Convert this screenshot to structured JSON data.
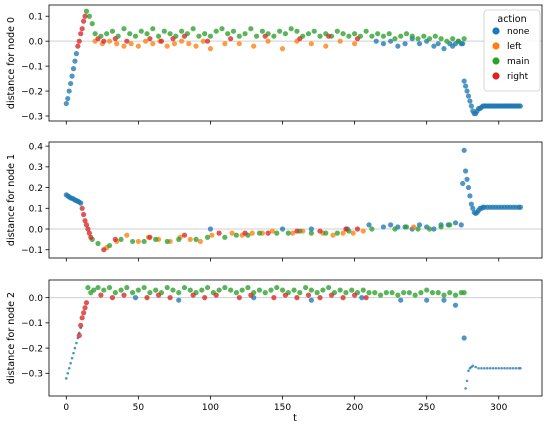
{
  "figure": {
    "legend_title": "action",
    "legend_items": [
      {
        "label": "none",
        "color": "#1f77b4"
      },
      {
        "label": "left",
        "color": "#ff7f0e"
      },
      {
        "label": "main",
        "color": "#2ca02c"
      },
      {
        "label": "right",
        "color": "#d62728"
      }
    ],
    "shared_xlabel": "t"
  },
  "chart_data": [
    {
      "type": "scatter",
      "ylabel": "distance for node 0",
      "xlim": [
        -12,
        330
      ],
      "ylim": [
        -0.32,
        0.145
      ],
      "xticks": [
        0,
        50,
        100,
        150,
        200,
        250,
        300
      ],
      "yticks": [
        0.1,
        0.0,
        -0.1,
        -0.2,
        -0.3
      ],
      "ytick_labels": [
        "0.1",
        "0.0",
        "−0.1",
        "−0.2",
        "−0.3"
      ],
      "show_xtick_labels": false,
      "legend": "top-right",
      "series": [
        {
          "name": "none",
          "color": "#1f77b4",
          "x": [
            0,
            1,
            2,
            3,
            4,
            5,
            6,
            7,
            215,
            220,
            225,
            230,
            235,
            240,
            245,
            250,
            255,
            258,
            262,
            266,
            268,
            270,
            272,
            274,
            275,
            276,
            277,
            278,
            279,
            280,
            281,
            282,
            283,
            284,
            285,
            286,
            287,
            288,
            289,
            290,
            291,
            292,
            293,
            294,
            295,
            296,
            297,
            298,
            299,
            300,
            301,
            302,
            303,
            304,
            305,
            306,
            307,
            308,
            309,
            310,
            311,
            312,
            313,
            314,
            315
          ],
          "y": [
            -0.25,
            -0.23,
            -0.2,
            -0.17,
            -0.14,
            -0.11,
            -0.08,
            -0.05,
            0.0,
            -0.01,
            0.0,
            -0.02,
            -0.01,
            0.01,
            -0.01,
            0.0,
            -0.02,
            -0.01,
            -0.03,
            -0.01,
            -0.02,
            -0.01,
            0.0,
            -0.01,
            -0.01,
            -0.16,
            -0.18,
            -0.2,
            -0.22,
            -0.24,
            -0.26,
            -0.28,
            -0.29,
            -0.29,
            -0.28,
            -0.27,
            -0.27,
            -0.265,
            -0.26,
            -0.26,
            -0.26,
            -0.26,
            -0.26,
            -0.26,
            -0.26,
            -0.26,
            -0.26,
            -0.26,
            -0.26,
            -0.26,
            -0.26,
            -0.26,
            -0.26,
            -0.26,
            -0.26,
            -0.26,
            -0.26,
            -0.26,
            -0.26,
            -0.26,
            -0.26,
            -0.26,
            -0.26,
            -0.26,
            -0.26
          ]
        },
        {
          "name": "left",
          "color": "#ff7f0e",
          "x": [
            20,
            25,
            30,
            35,
            40,
            45,
            50,
            55,
            60,
            65,
            70,
            75,
            80,
            85,
            90,
            95,
            100,
            110,
            120,
            130,
            140,
            150,
            160,
            170,
            180,
            190,
            200
          ],
          "y": [
            0.0,
            -0.01,
            0.0,
            -0.01,
            -0.02,
            -0.01,
            -0.02,
            0.0,
            -0.01,
            0.0,
            -0.02,
            -0.01,
            0.0,
            -0.01,
            -0.02,
            0.0,
            -0.03,
            -0.01,
            -0.01,
            -0.02,
            0.0,
            -0.03,
            0.0,
            -0.01,
            -0.02,
            0.0,
            -0.01
          ]
        },
        {
          "name": "main",
          "color": "#2ca02c",
          "x": [
            14,
            16,
            18,
            20,
            24,
            28,
            32,
            36,
            40,
            44,
            48,
            52,
            56,
            60,
            64,
            68,
            72,
            76,
            80,
            84,
            88,
            92,
            96,
            100,
            104,
            108,
            112,
            116,
            120,
            124,
            128,
            132,
            136,
            140,
            144,
            148,
            152,
            156,
            160,
            164,
            168,
            172,
            176,
            180,
            184,
            188,
            192,
            196,
            200,
            204,
            208,
            212,
            216,
            220,
            224,
            228,
            232,
            236,
            240,
            244,
            248,
            252,
            256,
            260,
            264,
            268,
            272,
            276
          ],
          "y": [
            0.12,
            0.1,
            0.07,
            0.03,
            0.02,
            0.03,
            0.04,
            0.02,
            0.05,
            0.03,
            0.02,
            0.04,
            0.03,
            0.05,
            0.02,
            0.04,
            0.03,
            0.02,
            0.04,
            0.03,
            0.05,
            0.02,
            0.03,
            0.02,
            0.04,
            0.05,
            0.03,
            0.04,
            0.02,
            0.03,
            0.05,
            0.02,
            0.04,
            0.03,
            0.02,
            0.04,
            0.03,
            0.05,
            0.04,
            0.02,
            0.03,
            0.04,
            0.02,
            0.03,
            0.02,
            0.04,
            0.03,
            0.02,
            0.03,
            0.02,
            0.04,
            0.02,
            0.03,
            0.02,
            0.03,
            0.01,
            0.02,
            0.03,
            0.02,
            0.01,
            0.02,
            0.01,
            0.02,
            0.01,
            0.0,
            0.01,
            0.0,
            0.01
          ]
        },
        {
          "name": "right",
          "color": "#d62728",
          "x": [
            8,
            9,
            10,
            11,
            12,
            13,
            22,
            26,
            34,
            42,
            58,
            66,
            74,
            82,
            98,
            114,
            138,
            162,
            182,
            202
          ],
          "y": [
            -0.02,
            0.0,
            0.03,
            0.05,
            0.08,
            0.1,
            0.01,
            0.0,
            0.01,
            0.0,
            0.01,
            0.0,
            0.01,
            0.02,
            0.0,
            0.01,
            0.02,
            0.01,
            0.02,
            0.01
          ]
        }
      ]
    },
    {
      "type": "scatter",
      "ylabel": "distance for node 1",
      "xlim": [
        -12,
        330
      ],
      "ylim": [
        -0.14,
        0.42
      ],
      "xticks": [
        0,
        50,
        100,
        150,
        200,
        250,
        300
      ],
      "yticks": [
        0.4,
        0.3,
        0.2,
        0.1,
        0.0,
        -0.1
      ],
      "ytick_labels": [
        "0.4",
        "0.3",
        "0.2",
        "0.1",
        "0.0",
        "−0.1"
      ],
      "show_xtick_labels": false,
      "series": [
        {
          "name": "none",
          "color": "#1f77b4",
          "x": [
            0,
            1,
            2,
            3,
            4,
            5,
            6,
            7,
            8,
            9,
            10,
            100,
            150,
            170,
            195,
            210,
            220,
            225,
            230,
            235,
            240,
            245,
            250,
            255,
            260,
            265,
            270,
            274,
            275,
            276,
            277,
            278,
            279,
            280,
            281,
            282,
            283,
            284,
            285,
            286,
            287,
            288,
            289,
            290,
            292,
            294,
            296,
            298,
            300,
            302,
            304,
            306,
            308,
            310,
            312,
            314,
            315
          ],
          "y": [
            0.165,
            0.16,
            0.155,
            0.15,
            0.148,
            0.145,
            0.14,
            0.137,
            0.134,
            0.13,
            0.125,
            0.0,
            0.0,
            0.0,
            0.0,
            0.02,
            0.01,
            0.02,
            0.01,
            0.01,
            0.0,
            0.02,
            0.01,
            0.0,
            0.02,
            0.02,
            0.03,
            0.02,
            0.22,
            0.38,
            0.28,
            0.24,
            0.2,
            0.16,
            0.12,
            0.1,
            0.08,
            0.075,
            0.08,
            0.09,
            0.1,
            0.1,
            0.105,
            0.105,
            0.105,
            0.105,
            0.105,
            0.105,
            0.105,
            0.105,
            0.105,
            0.105,
            0.105,
            0.105,
            0.105,
            0.105,
            0.105
          ]
        },
        {
          "name": "left",
          "color": "#ff7f0e",
          "x": [
            28,
            35,
            42,
            50,
            57,
            64,
            72,
            79,
            86,
            93,
            101,
            115,
            122,
            129,
            136,
            143,
            157,
            164,
            178,
            185,
            192,
            199,
            206,
            241
          ],
          "y": [
            -0.09,
            -0.06,
            -0.03,
            -0.06,
            -0.04,
            -0.05,
            -0.06,
            -0.04,
            -0.05,
            -0.06,
            -0.03,
            -0.02,
            -0.03,
            -0.02,
            -0.02,
            -0.01,
            -0.02,
            -0.01,
            -0.02,
            -0.03,
            -0.02,
            -0.02,
            -0.01,
            0.01
          ]
        },
        {
          "name": "main",
          "color": "#2ca02c",
          "x": [
            18,
            22,
            30,
            38,
            46,
            54,
            62,
            70,
            78,
            90,
            98,
            110,
            118,
            126,
            134,
            146,
            154,
            162,
            170,
            180,
            188,
            196,
            212,
            228,
            236,
            244,
            252,
            260,
            266
          ],
          "y": [
            -0.05,
            -0.07,
            -0.08,
            -0.05,
            -0.06,
            -0.06,
            -0.05,
            -0.06,
            -0.05,
            -0.05,
            -0.04,
            -0.04,
            -0.03,
            -0.03,
            -0.02,
            -0.02,
            -0.02,
            -0.01,
            -0.02,
            -0.02,
            -0.02,
            -0.01,
            0.0,
            0.0,
            0.01,
            0.0,
            0.0,
            0.01,
            0.02
          ]
        },
        {
          "name": "right",
          "color": "#d62728",
          "x": [
            11,
            12,
            13,
            14,
            15,
            16,
            17,
            26,
            34,
            58,
            82,
            106,
            124,
            140,
            160,
            176,
            194,
            202
          ],
          "y": [
            0.1,
            0.07,
            0.04,
            0.02,
            0.0,
            -0.02,
            -0.04,
            -0.1,
            -0.05,
            -0.04,
            -0.03,
            -0.02,
            -0.02,
            -0.02,
            -0.01,
            -0.01,
            0.0,
            0.0
          ]
        }
      ]
    },
    {
      "type": "scatter",
      "ylabel": "distance for node 2",
      "xlabel": "t",
      "xlim": [
        -12,
        330
      ],
      "ylim": [
        -0.39,
        0.07
      ],
      "xticks": [
        0,
        50,
        100,
        150,
        200,
        250,
        300
      ],
      "xtick_labels": [
        "0",
        "50",
        "100",
        "150",
        "200",
        "250",
        "300"
      ],
      "yticks": [
        0.0,
        -0.1,
        -0.2,
        -0.3
      ],
      "ytick_labels": [
        "0.0",
        "−0.1",
        "−0.2",
        "−0.3"
      ],
      "show_xtick_labels": true,
      "series": [
        {
          "name": "none",
          "color": "#1f77b4",
          "x": [
            0,
            1,
            2,
            3,
            4,
            5,
            6,
            7,
            8,
            9,
            10,
            48,
            78,
            130,
            170,
            205,
            232,
            250,
            262,
            270,
            276,
            277,
            278,
            279,
            280,
            281,
            282,
            284,
            286,
            288,
            290,
            292,
            294,
            296,
            298,
            300,
            302,
            304,
            306,
            308,
            310,
            312,
            314,
            315
          ],
          "y": [
            -0.32,
            -0.3,
            -0.28,
            -0.26,
            -0.24,
            -0.22,
            -0.2,
            -0.18,
            -0.16,
            -0.14,
            -0.12,
            0.0,
            -0.01,
            0.0,
            -0.01,
            0.0,
            -0.01,
            -0.01,
            -0.01,
            -0.03,
            -0.16,
            -0.36,
            -0.33,
            -0.29,
            -0.28,
            -0.275,
            -0.27,
            -0.275,
            -0.28,
            -0.28,
            -0.28,
            -0.28,
            -0.28,
            -0.28,
            -0.28,
            -0.28,
            -0.28,
            -0.28,
            -0.28,
            -0.28,
            -0.28,
            -0.28,
            -0.28,
            -0.28
          ]
        },
        {
          "name": "left",
          "color": "#ff7f0e",
          "x": [],
          "y": []
        },
        {
          "name": "main",
          "color": "#2ca02c",
          "x": [
            15,
            17,
            19,
            22,
            26,
            30,
            34,
            38,
            42,
            46,
            50,
            54,
            58,
            62,
            66,
            70,
            74,
            78,
            82,
            86,
            90,
            94,
            98,
            102,
            106,
            110,
            114,
            118,
            122,
            126,
            130,
            134,
            138,
            142,
            146,
            150,
            154,
            158,
            162,
            166,
            170,
            174,
            178,
            182,
            186,
            190,
            194,
            198,
            202,
            206,
            210,
            214,
            218,
            222,
            226,
            230,
            234,
            238,
            242,
            246,
            250,
            254,
            258,
            262,
            266,
            270,
            274,
            276
          ],
          "y": [
            0.04,
            0.02,
            0.03,
            0.04,
            0.03,
            0.04,
            0.02,
            0.03,
            0.04,
            0.02,
            0.03,
            0.04,
            0.02,
            0.03,
            0.02,
            0.04,
            0.03,
            0.02,
            0.04,
            0.03,
            0.02,
            0.03,
            0.04,
            0.02,
            0.03,
            0.04,
            0.03,
            0.02,
            0.03,
            0.04,
            0.02,
            0.03,
            0.02,
            0.03,
            0.04,
            0.03,
            0.02,
            0.03,
            0.02,
            0.04,
            0.03,
            0.02,
            0.03,
            0.04,
            0.02,
            0.03,
            0.02,
            0.03,
            0.02,
            0.03,
            0.02,
            0.02,
            0.01,
            0.02,
            0.02,
            0.01,
            0.02,
            0.02,
            0.01,
            0.02,
            0.03,
            0.02,
            0.02,
            0.01,
            0.02,
            0.01,
            0.02,
            0.02
          ]
        },
        {
          "name": "right",
          "color": "#d62728",
          "x": [
            9,
            10,
            11,
            12,
            13,
            14,
            24,
            32,
            40,
            56,
            64,
            72,
            88,
            96,
            104,
            120,
            128,
            144,
            152,
            160,
            168,
            176,
            184,
            192,
            200,
            208
          ],
          "y": [
            -0.15,
            -0.11,
            -0.08,
            -0.06,
            -0.04,
            -0.02,
            0.01,
            0.0,
            0.01,
            0.0,
            0.01,
            0.0,
            0.01,
            0.0,
            0.01,
            0.0,
            0.01,
            0.0,
            0.01,
            0.0,
            0.01,
            0.0,
            0.01,
            0.0,
            0.01,
            0.0
          ]
        }
      ]
    }
  ]
}
